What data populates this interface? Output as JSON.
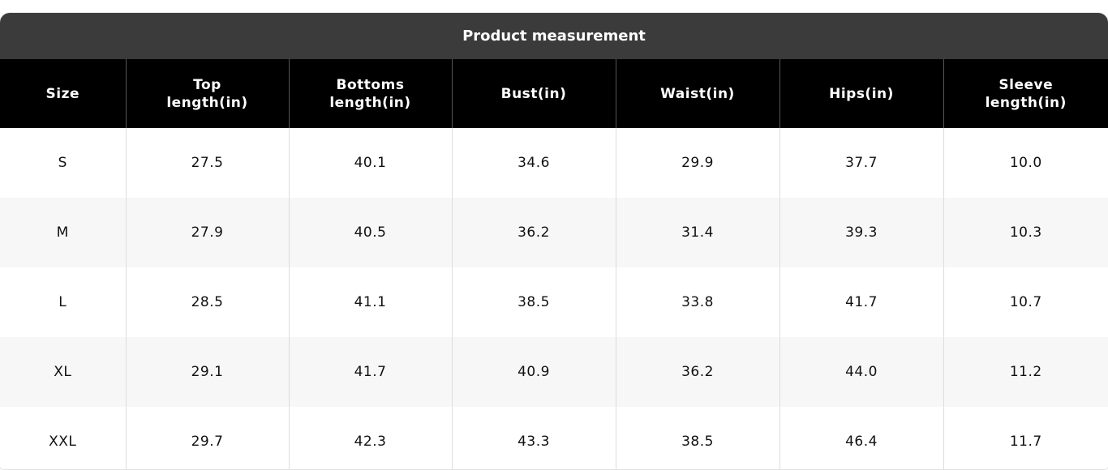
{
  "table": {
    "title": "Product measurement",
    "columns": [
      "Size",
      "Top length(in)",
      "Bottoms length(in)",
      "Bust(in)",
      "Waist(in)",
      "Hips(in)",
      "Sleeve length(in)"
    ],
    "rows": [
      [
        "S",
        "27.5",
        "40.1",
        "34.6",
        "29.9",
        "37.7",
        "10.0"
      ],
      [
        "M",
        "27.9",
        "40.5",
        "36.2",
        "31.4",
        "39.3",
        "10.3"
      ],
      [
        "L",
        "28.5",
        "41.1",
        "38.5",
        "33.8",
        "41.7",
        "10.7"
      ],
      [
        "XL",
        "29.1",
        "41.7",
        "40.9",
        "36.2",
        "44.0",
        "11.2"
      ],
      [
        "XXL",
        "29.7",
        "42.3",
        "43.3",
        "38.5",
        "46.4",
        "11.7"
      ]
    ]
  }
}
